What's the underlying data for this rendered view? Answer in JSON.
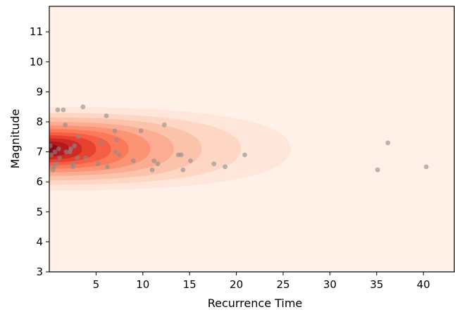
{
  "chart_data": {
    "type": "scatter",
    "title": "",
    "xlabel": "Recurrence Time",
    "ylabel": "Magnitude",
    "xlim": [
      0,
      43.3
    ],
    "ylim": [
      3,
      11.85
    ],
    "x_ticks": [
      5,
      10,
      15,
      20,
      25,
      30,
      35,
      40
    ],
    "y_ticks": [
      3,
      4,
      5,
      6,
      7,
      8,
      9,
      10,
      11
    ],
    "grid": false,
    "legend": "none",
    "colormap": "Reds",
    "density": {
      "type": "filled-contour",
      "center_x": 0,
      "center_y": 7.1,
      "level_extents": [
        {
          "half_width_y": 1.4,
          "x_extent": 25.8
        },
        {
          "half_width_y": 1.2,
          "x_extent": 20.5
        },
        {
          "half_width_y": 1.05,
          "x_extent": 16.3
        },
        {
          "half_width_y": 0.9,
          "x_extent": 13.3
        },
        {
          "half_width_y": 0.78,
          "x_extent": 10.8
        },
        {
          "half_width_y": 0.66,
          "x_extent": 8.5
        },
        {
          "half_width_y": 0.55,
          "x_extent": 6.6
        },
        {
          "half_width_y": 0.45,
          "x_extent": 5.0
        },
        {
          "half_width_y": 0.35,
          "x_extent": 3.5
        },
        {
          "half_width_y": 0.25,
          "x_extent": 2.1
        },
        {
          "half_width_y": 0.15,
          "x_extent": 1.0
        }
      ],
      "fill_colors": [
        "#fee6da",
        "#fdd6c4",
        "#fcc3ab",
        "#fcac92",
        "#fc9474",
        "#fb7a5a",
        "#f65f45",
        "#e8422f",
        "#cf2a24",
        "#b6171b",
        "#8f0b12"
      ],
      "background_color": "#fff0e8"
    },
    "points": {
      "color": "#8c8c8c",
      "opacity": 0.6,
      "x": [
        0.1,
        0.2,
        0.4,
        0.5,
        0.6,
        0.8,
        0.9,
        1.0,
        1.1,
        1.5,
        1.7,
        1.8,
        2.2,
        2.3,
        2.5,
        2.6,
        2.7,
        3.0,
        3.1,
        3.6,
        3.9,
        5.2,
        5.6,
        6.1,
        6.2,
        7.0,
        7.1,
        7.2,
        7.5,
        9.0,
        9.8,
        11.0,
        11.2,
        11.6,
        12.3,
        13.8,
        14.1,
        14.3,
        15.1,
        17.6,
        18.8,
        20.9,
        35.1,
        36.2,
        40.3
      ],
      "y": [
        7.2,
        6.9,
        6.4,
        6.5,
        7.0,
        6.6,
        8.4,
        7.1,
        6.8,
        8.4,
        7.9,
        7.0,
        7.0,
        7.1,
        6.5,
        6.6,
        7.2,
        6.8,
        7.5,
        8.5,
        6.8,
        6.6,
        7.3,
        8.2,
        6.5,
        7.7,
        7.0,
        7.4,
        6.9,
        6.7,
        7.7,
        6.4,
        6.7,
        6.6,
        7.9,
        6.9,
        6.9,
        6.4,
        6.7,
        6.6,
        6.5,
        6.9,
        6.4,
        7.3,
        6.5
      ]
    }
  }
}
